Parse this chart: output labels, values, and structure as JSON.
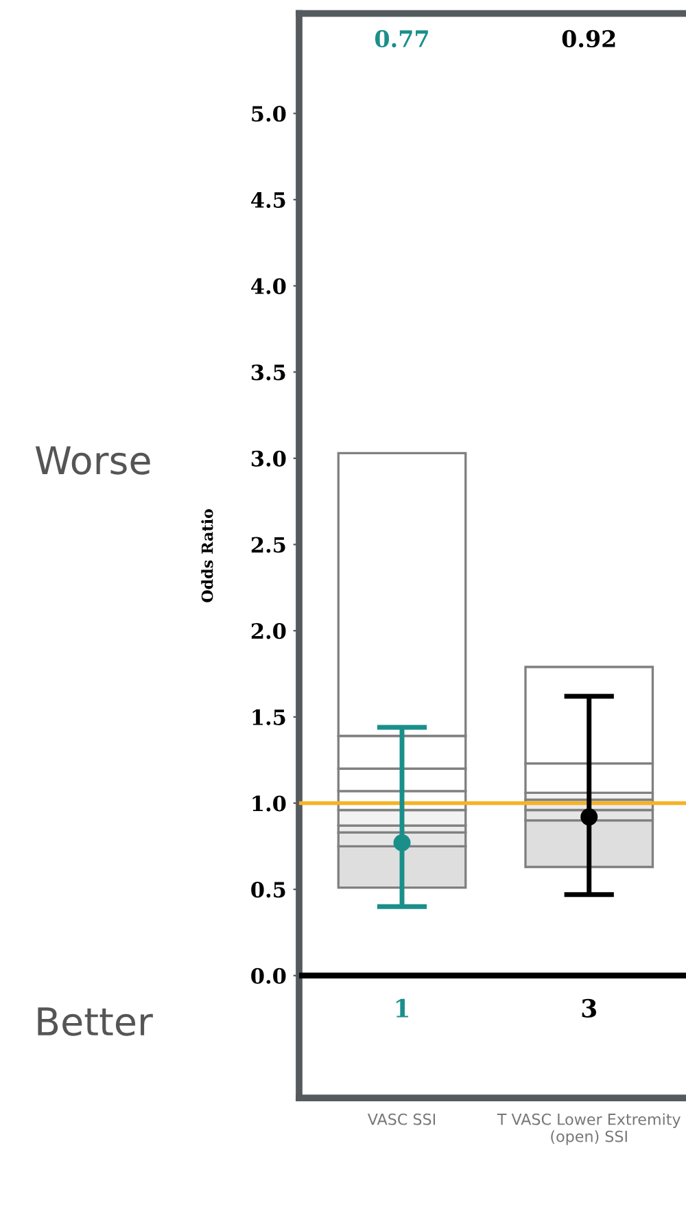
{
  "chart_data": {
    "type": "bar",
    "ylabel": "Odds Ratio",
    "categories": [
      "VASC SSI",
      "T VASC Lower Extremity (open) SSI"
    ],
    "series": [
      {
        "color": "#dedede",
        "base": [
          0.51,
          0.63
        ],
        "values": [
          0.24,
          0.27
        ]
      },
      {
        "color": "#e6e6e6",
        "base": [
          0.75,
          0.9
        ],
        "values": [
          0.08,
          0.06
        ]
      },
      {
        "color": "#ececec",
        "base": [
          0.83,
          0.96
        ],
        "values": [
          0.04,
          0.06
        ]
      },
      {
        "color": "#f2f2f2",
        "base": [
          0.87,
          1.02
        ],
        "values": [
          0.09,
          0.04
        ]
      },
      {
        "color": "#ffffff",
        "base": [
          0.96,
          1.06
        ],
        "values": [
          0.11,
          0.17
        ]
      },
      {
        "color": "#ffffff",
        "base": [
          1.07,
          1.23
        ],
        "values": [
          0.13,
          0.56
        ]
      },
      {
        "color": "#ffffff",
        "base": [
          1.2,
          null
        ],
        "values": [
          0.19,
          null
        ]
      },
      {
        "color": "#ffffff",
        "base": [
          1.39,
          null
        ],
        "values": [
          1.64,
          null
        ]
      },
      {
        "type": "scatter",
        "colors": [
          "#1a8f8a",
          "#000000"
        ],
        "values": [
          0.77,
          0.92
        ],
        "errors": [
          [
            0.4,
            1.44
          ],
          [
            0.47,
            1.62
          ]
        ]
      }
    ],
    "marker": "circle",
    "ylim": [
      -0.71,
      5.58
    ],
    "yticks": [
      {
        "value": 0,
        "label": "0.0"
      },
      {
        "value": 0.5,
        "label": "0.5"
      },
      {
        "value": 1,
        "label": "1.0"
      },
      {
        "value": 1.5,
        "label": "1.5"
      },
      {
        "value": 2,
        "label": "2.0"
      },
      {
        "value": 2.5,
        "label": "2.5"
      },
      {
        "value": 3,
        "label": "3.0"
      },
      {
        "value": 3.5,
        "label": "3.5"
      },
      {
        "value": 4,
        "label": "4.0"
      },
      {
        "value": 4.5,
        "label": "4.5"
      },
      {
        "value": 5,
        "label": "5.0"
      }
    ],
    "ref_lines": [
      {
        "axis": "y",
        "value": 1.0,
        "color": "#f5b324"
      },
      {
        "axis": "y",
        "value": 0,
        "color": "#000000"
      }
    ],
    "annotations": [
      "Worse",
      "Better",
      "0.77",
      "0.92",
      "1",
      "3"
    ],
    "grid": false
  }
}
